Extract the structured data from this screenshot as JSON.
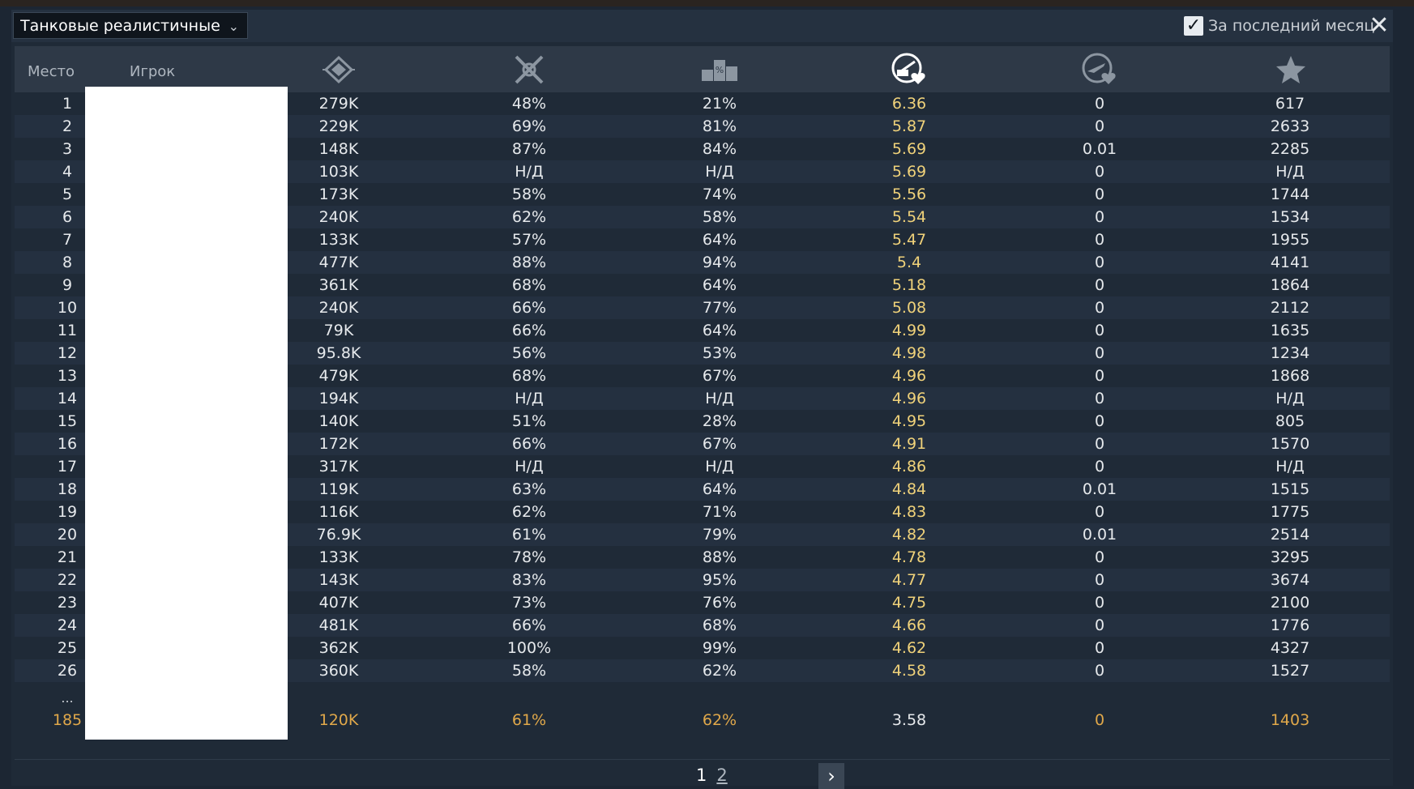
{
  "header": {
    "mode_label": "Танковые реалистичные бои",
    "last_month_label": "За последний месяц",
    "last_month_checked": true
  },
  "columns": {
    "rank": "Место",
    "player": "Игрок",
    "icons": [
      "activity-icon",
      "kill-ratio-icon",
      "win-rate-icon",
      "ground-kills-per-death-icon",
      "air-kills-per-death-icon",
      "rating-star-icon"
    ]
  },
  "rows": [
    {
      "rank": "1",
      "v1": "279K",
      "v2": "48%",
      "v3": "21%",
      "v4": "6.36",
      "v5": "0",
      "v6": "617"
    },
    {
      "rank": "2",
      "v1": "229K",
      "v2": "69%",
      "v3": "81%",
      "v4": "5.87",
      "v5": "0",
      "v6": "2633"
    },
    {
      "rank": "3",
      "v1": "148K",
      "v2": "87%",
      "v3": "84%",
      "v4": "5.69",
      "v5": "0.01",
      "v6": "2285"
    },
    {
      "rank": "4",
      "v1": "103K",
      "v2": "Н/Д",
      "v3": "Н/Д",
      "v4": "5.69",
      "v5": "0",
      "v6": "Н/Д"
    },
    {
      "rank": "5",
      "v1": "173K",
      "v2": "58%",
      "v3": "74%",
      "v4": "5.56",
      "v5": "0",
      "v6": "1744"
    },
    {
      "rank": "6",
      "v1": "240K",
      "v2": "62%",
      "v3": "58%",
      "v4": "5.54",
      "v5": "0",
      "v6": "1534"
    },
    {
      "rank": "7",
      "v1": "133K",
      "v2": "57%",
      "v3": "64%",
      "v4": "5.47",
      "v5": "0",
      "v6": "1955"
    },
    {
      "rank": "8",
      "v1": "477K",
      "v2": "88%",
      "v3": "94%",
      "v4": "5.4",
      "v5": "0",
      "v6": "4141"
    },
    {
      "rank": "9",
      "v1": "361K",
      "v2": "68%",
      "v3": "64%",
      "v4": "5.18",
      "v5": "0",
      "v6": "1864"
    },
    {
      "rank": "10",
      "v1": "240K",
      "v2": "66%",
      "v3": "77%",
      "v4": "5.08",
      "v5": "0",
      "v6": "2112"
    },
    {
      "rank": "11",
      "v1": "79K",
      "v2": "66%",
      "v3": "64%",
      "v4": "4.99",
      "v5": "0",
      "v6": "1635"
    },
    {
      "rank": "12",
      "v1": "95.8K",
      "v2": "56%",
      "v3": "53%",
      "v4": "4.98",
      "v5": "0",
      "v6": "1234"
    },
    {
      "rank": "13",
      "v1": "479K",
      "v2": "68%",
      "v3": "67%",
      "v4": "4.96",
      "v5": "0",
      "v6": "1868"
    },
    {
      "rank": "14",
      "v1": "194K",
      "v2": "Н/Д",
      "v3": "Н/Д",
      "v4": "4.96",
      "v5": "0",
      "v6": "Н/Д"
    },
    {
      "rank": "15",
      "v1": "140K",
      "v2": "51%",
      "v3": "28%",
      "v4": "4.95",
      "v5": "0",
      "v6": "805"
    },
    {
      "rank": "16",
      "v1": "172K",
      "v2": "66%",
      "v3": "67%",
      "v4": "4.91",
      "v5": "0",
      "v6": "1570"
    },
    {
      "rank": "17",
      "v1": "317K",
      "v2": "Н/Д",
      "v3": "Н/Д",
      "v4": "4.86",
      "v5": "0",
      "v6": "Н/Д"
    },
    {
      "rank": "18",
      "v1": "119K",
      "v2": "63%",
      "v3": "64%",
      "v4": "4.84",
      "v5": "0.01",
      "v6": "1515"
    },
    {
      "rank": "19",
      "v1": "116K",
      "v2": "62%",
      "v3": "71%",
      "v4": "4.83",
      "v5": "0",
      "v6": "1775"
    },
    {
      "rank": "20",
      "v1": "76.9K",
      "v2": "61%",
      "v3": "79%",
      "v4": "4.82",
      "v5": "0.01",
      "v6": "2514"
    },
    {
      "rank": "21",
      "v1": "133K",
      "v2": "78%",
      "v3": "88%",
      "v4": "4.78",
      "v5": "0",
      "v6": "3295"
    },
    {
      "rank": "22",
      "v1": "143K",
      "v2": "83%",
      "v3": "95%",
      "v4": "4.77",
      "v5": "0",
      "v6": "3674"
    },
    {
      "rank": "23",
      "v1": "407K",
      "v2": "73%",
      "v3": "76%",
      "v4": "4.75",
      "v5": "0",
      "v6": "2100"
    },
    {
      "rank": "24",
      "v1": "481K",
      "v2": "66%",
      "v3": "68%",
      "v4": "4.66",
      "v5": "0",
      "v6": "1776"
    },
    {
      "rank": "25",
      "v1": "362K",
      "v2": "100%",
      "v3": "99%",
      "v4": "4.62",
      "v5": "0",
      "v6": "4327"
    },
    {
      "rank": "26",
      "v1": "360K",
      "v2": "58%",
      "v3": "62%",
      "v4": "4.58",
      "v5": "0",
      "v6": "1527"
    }
  ],
  "ellipsis": "...",
  "my_row": {
    "rank": "185",
    "v1": "120K",
    "v2": "61%",
    "v3": "62%",
    "v4": "3.58",
    "v5": "0",
    "v6": "1403"
  },
  "pagination": {
    "current": "1",
    "next_page": "2"
  },
  "colors": {
    "accent_gold": "#e0a84a",
    "highlight_yellow": "#f0d27a",
    "background": "#1f2a37"
  }
}
